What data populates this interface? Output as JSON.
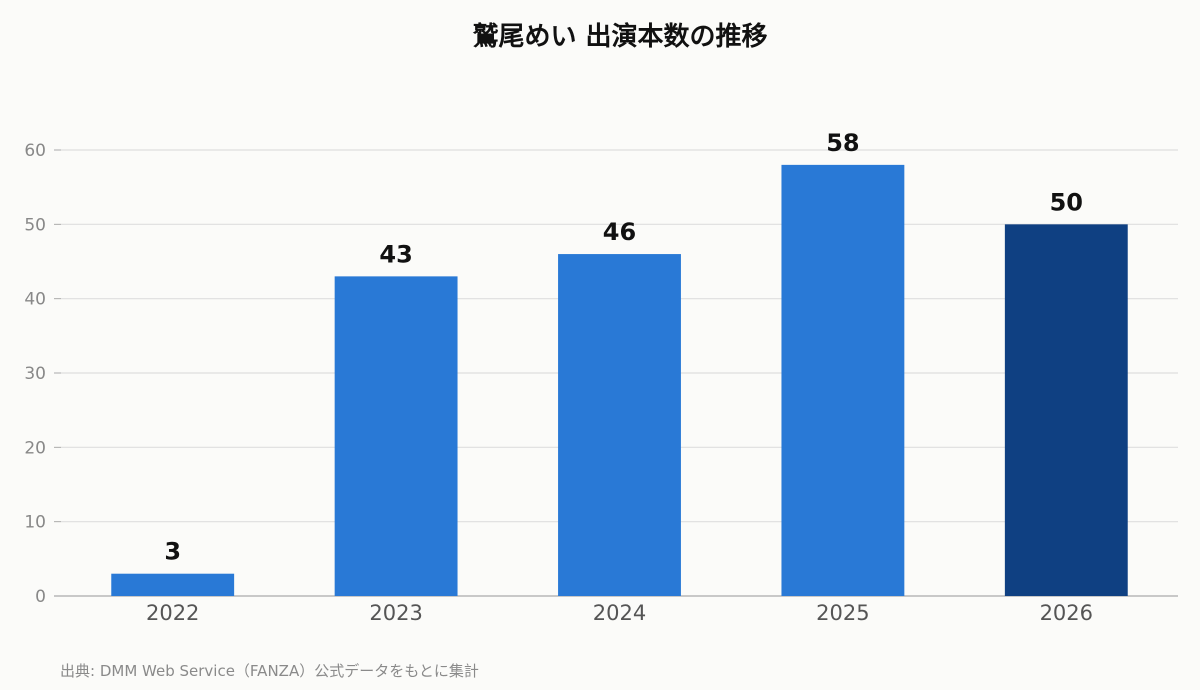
{
  "chart_data": {
    "type": "bar",
    "title": "鷲尾めい 出演本数の推移",
    "categories": [
      "2022",
      "2023",
      "2024",
      "2025",
      "2026"
    ],
    "values": [
      3,
      43,
      46,
      58,
      50
    ],
    "xlabel": "",
    "ylabel": "",
    "ylim": [
      0,
      60
    ],
    "yticks": [
      0,
      10,
      20,
      30,
      40,
      50,
      60
    ],
    "grid": true,
    "colors": {
      "bar": "#2979d6",
      "highlight_bar": "#0f4082",
      "grid": "#dedede",
      "axis": "#aaaaaa"
    },
    "highlight_index": 4
  },
  "source": "出典: DMM Web Service（FANZA）公式データをもとに集計"
}
